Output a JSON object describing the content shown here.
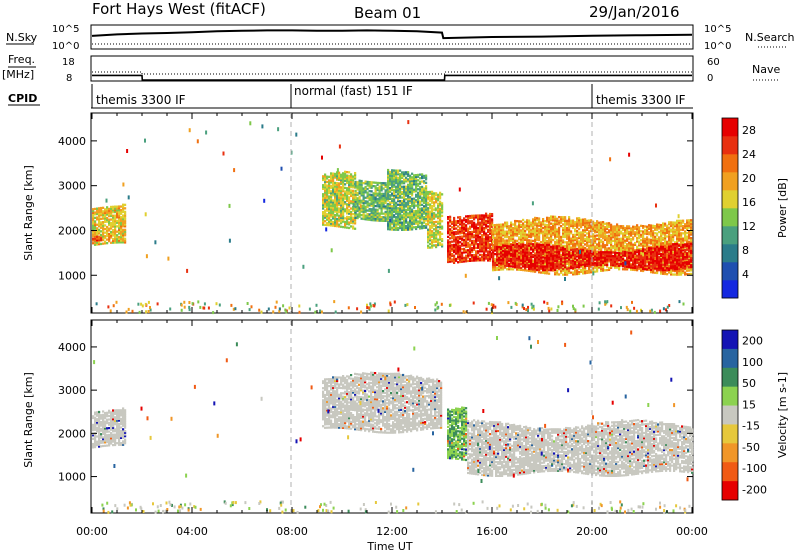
{
  "header": {
    "station": "Fort Hays West (fitACF)",
    "beam": "Beam 01",
    "date": "29/Jan/2016"
  },
  "panels": {
    "nsky": {
      "left_label": "N.Sky",
      "right_label": "N.Search",
      "left_ticks": [
        "10^5",
        "10^0"
      ],
      "right_ticks": [
        "10^5",
        "10^0"
      ]
    },
    "freq": {
      "left_label_1": "Freq.",
      "left_label_2": "[MHz]",
      "right_label": "Nave",
      "left_ticks": [
        "18",
        "8"
      ],
      "right_ticks": [
        "60",
        "0"
      ]
    },
    "cpid": {
      "label": "CPID",
      "modes": [
        "themis 3300 IF",
        "normal (fast) 151 IF",
        "themis 3300 IF"
      ],
      "mode_start_hours": [
        0,
        8,
        20
      ]
    }
  },
  "colorbars": {
    "power": {
      "label": "Power [dB]",
      "ticks": [
        "4",
        "8",
        "12",
        "16",
        "20",
        "24",
        "28"
      ],
      "colors": [
        "#1428e0",
        "#1f4fb0",
        "#2b7c8a",
        "#4aa07e",
        "#7ec84a",
        "#e0d030",
        "#f0a020",
        "#f07010",
        "#e83010",
        "#e60000"
      ]
    },
    "velocity": {
      "label": "Velocity [m s-1]",
      "ticks": [
        "200",
        "100",
        "50",
        "15",
        "-15",
        "-50",
        "-100",
        "-200"
      ],
      "colors": [
        "#1414b4",
        "#2864a0",
        "#3c8c5a",
        "#8cd250",
        "#c8c8c0",
        "#e6c83c",
        "#f09628",
        "#f05a14",
        "#e60000"
      ]
    }
  },
  "chart_data": {
    "type": "heatmap",
    "xlabel": "Time UT",
    "ylabel": "Slant Range [km]",
    "x_ticks": [
      "00:00",
      "04:00",
      "08:00",
      "12:00",
      "16:00",
      "20:00",
      "00:00"
    ],
    "y_ticks": [
      "1000",
      "2000",
      "3000",
      "4000"
    ],
    "xlim_hours": [
      0,
      24
    ],
    "ylim_km": [
      180,
      4600
    ],
    "dashed_mode_boundaries_hours": [
      8,
      20
    ],
    "nsky_series": [
      {
        "t": 0,
        "v": 0.55
      },
      {
        "t": 1,
        "v": 0.62
      },
      {
        "t": 2,
        "v": 0.66
      },
      {
        "t": 3,
        "v": 0.68
      },
      {
        "t": 4,
        "v": 0.72
      },
      {
        "t": 5,
        "v": 0.76
      },
      {
        "t": 6,
        "v": 0.78
      },
      {
        "t": 7,
        "v": 0.8
      },
      {
        "t": 8,
        "v": 0.8
      },
      {
        "t": 9,
        "v": 0.78
      },
      {
        "t": 10,
        "v": 0.78
      },
      {
        "t": 11,
        "v": 0.8
      },
      {
        "t": 12,
        "v": 0.78
      },
      {
        "t": 13,
        "v": 0.76
      },
      {
        "t": 14,
        "v": 0.7
      },
      {
        "t": 14.05,
        "v": 0.45
      },
      {
        "t": 16,
        "v": 0.5
      },
      {
        "t": 18,
        "v": 0.52
      },
      {
        "t": 20,
        "v": 0.56
      },
      {
        "t": 22,
        "v": 0.58
      },
      {
        "t": 24,
        "v": 0.6
      }
    ],
    "freq_series_mhz": [
      {
        "t": 0,
        "v": 10
      },
      {
        "t": 2,
        "v": 10
      },
      {
        "t": 2.01,
        "v": 8
      },
      {
        "t": 14.1,
        "v": 8
      },
      {
        "t": 14.11,
        "v": 10
      },
      {
        "t": 24,
        "v": 10
      }
    ],
    "power_regions": [
      {
        "t0": 0.0,
        "t1": 1.3,
        "r0": 1600,
        "r1": 2700,
        "p": 16
      },
      {
        "t0": 0.0,
        "t1": 0.4,
        "r0": 1650,
        "r1": 2000,
        "p": 24
      },
      {
        "t0": 9.2,
        "t1": 10.5,
        "r0": 2000,
        "r1": 3300,
        "p": 14
      },
      {
        "t0": 10.5,
        "t1": 11.8,
        "r0": 2200,
        "r1": 3100,
        "p": 11
      },
      {
        "t0": 11.8,
        "t1": 13.4,
        "r0": 2000,
        "r1": 3400,
        "p": 11
      },
      {
        "t0": 13.4,
        "t1": 14.0,
        "r0": 1600,
        "r1": 3000,
        "p": 14
      },
      {
        "t0": 14.2,
        "t1": 16.0,
        "r0": 1200,
        "r1": 2500,
        "p": 24
      },
      {
        "t0": 16.0,
        "t1": 24.0,
        "r0": 1000,
        "r1": 2300,
        "p": 18
      },
      {
        "t0": 16.0,
        "t1": 24.0,
        "r0": 1100,
        "r1": 1700,
        "p": 26
      }
    ],
    "velocity_regions": [
      {
        "t0": 0.0,
        "t1": 1.3,
        "r0": 1600,
        "r1": 2700,
        "v": 0
      },
      {
        "t0": 9.2,
        "t1": 14.0,
        "r0": 2000,
        "r1": 3400,
        "v": 0
      },
      {
        "t0": 14.2,
        "t1": 15.0,
        "r0": 1300,
        "r1": 2600,
        "v": 30
      },
      {
        "t0": 15.0,
        "t1": 24.0,
        "r0": 1000,
        "r1": 2300,
        "v": 0
      }
    ]
  }
}
